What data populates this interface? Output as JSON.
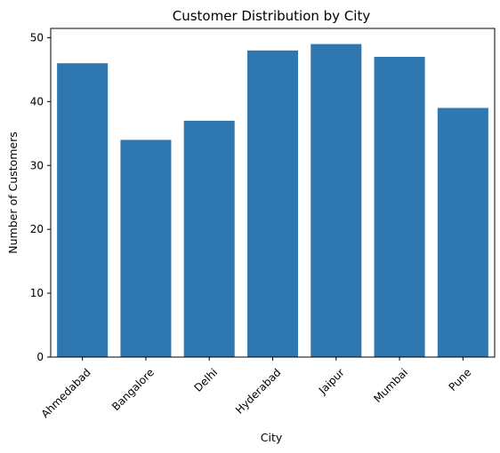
{
  "chart_data": {
    "type": "bar",
    "title": "Customer Distribution by City",
    "xlabel": "City",
    "ylabel": "Number of Customers",
    "categories": [
      "Ahmedabad",
      "Bangalore",
      "Delhi",
      "Hyderabad",
      "Jaipur",
      "Mumbai",
      "Pune"
    ],
    "values": [
      46,
      34,
      37,
      48,
      49,
      47,
      39
    ],
    "ylim": [
      0,
      51.45
    ],
    "yticks": [
      0,
      10,
      20,
      30,
      40,
      50
    ],
    "grid": false,
    "legend": "none",
    "bar_color": "#2f77b0",
    "x_tick_rotation_deg": 45
  }
}
